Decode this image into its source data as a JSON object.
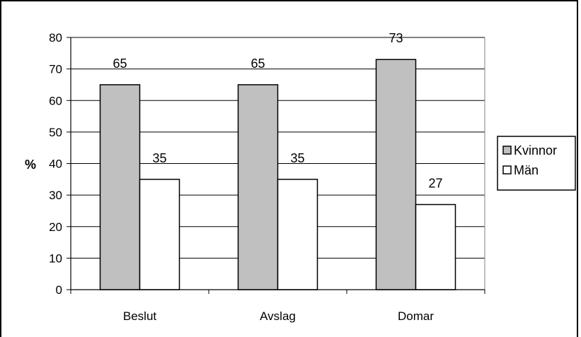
{
  "chart_data": {
    "type": "bar",
    "categories": [
      "Beslut",
      "Avslag",
      "Domar"
    ],
    "series": [
      {
        "name": "Kvinnor",
        "values": [
          65,
          65,
          73
        ],
        "color": "#c0c0c0"
      },
      {
        "name": "Män",
        "values": [
          35,
          35,
          27
        ],
        "color": "#ffffff"
      }
    ],
    "data_labels": [
      [
        "65",
        "65",
        "73"
      ],
      [
        "35",
        "35",
        "27"
      ]
    ],
    "ylabel": "%",
    "ylim": [
      0,
      80
    ],
    "yticks": [
      "0",
      "10",
      "20",
      "30",
      "40",
      "50",
      "60",
      "70",
      "80"
    ],
    "grid": true,
    "legend_position": "right"
  }
}
